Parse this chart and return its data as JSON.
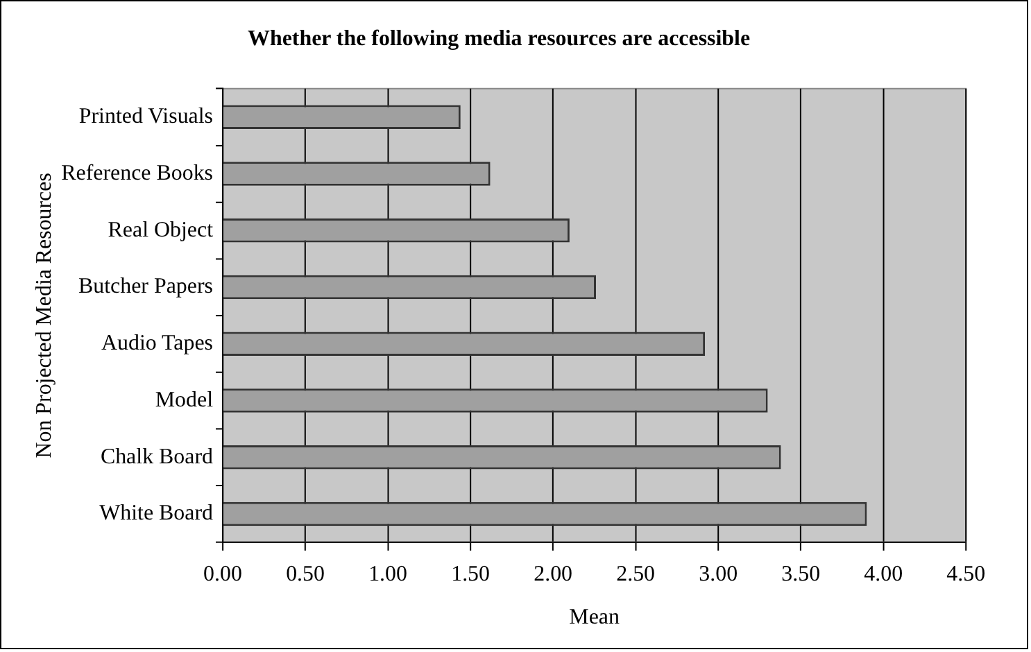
{
  "chart_data": {
    "type": "bar",
    "orientation": "horizontal",
    "title": "Whether the following media resources are accessible",
    "xlabel": "Mean",
    "ylabel": "Non Projected Media Resources",
    "categories": [
      "Printed Visuals",
      "Reference Books",
      "Real Object",
      "Butcher Papers",
      "Audio Tapes",
      "Model",
      "Chalk Board",
      "White Board"
    ],
    "values": [
      1.44,
      1.62,
      2.1,
      2.26,
      2.92,
      3.3,
      3.38,
      3.9
    ],
    "color": "#a0a0a0",
    "xlim": [
      0,
      4.5
    ],
    "xticks": [
      {
        "value": 0,
        "label": "0.00"
      },
      {
        "value": 0.5,
        "label": "0.50"
      },
      {
        "value": 1,
        "label": "1.00"
      },
      {
        "value": 1.5,
        "label": "1.50"
      },
      {
        "value": 2,
        "label": "2.00"
      },
      {
        "value": 2.5,
        "label": "2.50"
      },
      {
        "value": 3,
        "label": "3.00"
      },
      {
        "value": 3.5,
        "label": "3.50"
      },
      {
        "value": 4,
        "label": "4.00"
      },
      {
        "value": 4.5,
        "label": "4.50"
      }
    ],
    "grid": "x",
    "legend": false
  }
}
